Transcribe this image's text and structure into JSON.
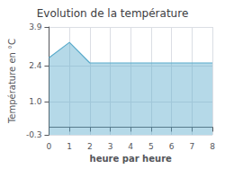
{
  "chart_data": {
    "type": "area",
    "title": "Evolution de la température",
    "xlabel": "heure par heure",
    "ylabel": "Température en °C",
    "x": [
      0,
      1,
      2,
      3,
      4,
      5,
      6,
      7,
      8
    ],
    "values": [
      2.7,
      3.3,
      2.5,
      2.5,
      2.5,
      2.5,
      2.5,
      2.5,
      2.5
    ],
    "color": "#5aabcb",
    "xlim": [
      0,
      8
    ],
    "xticks": [
      0,
      1,
      2,
      3,
      4,
      5,
      6,
      7,
      8
    ],
    "ylim": [
      -0.3,
      3.9
    ],
    "yticks": [
      -0.3,
      {
        "value": 1.0,
        "label": "1.0"
      },
      2.4,
      3.9
    ],
    "grid": true
  }
}
